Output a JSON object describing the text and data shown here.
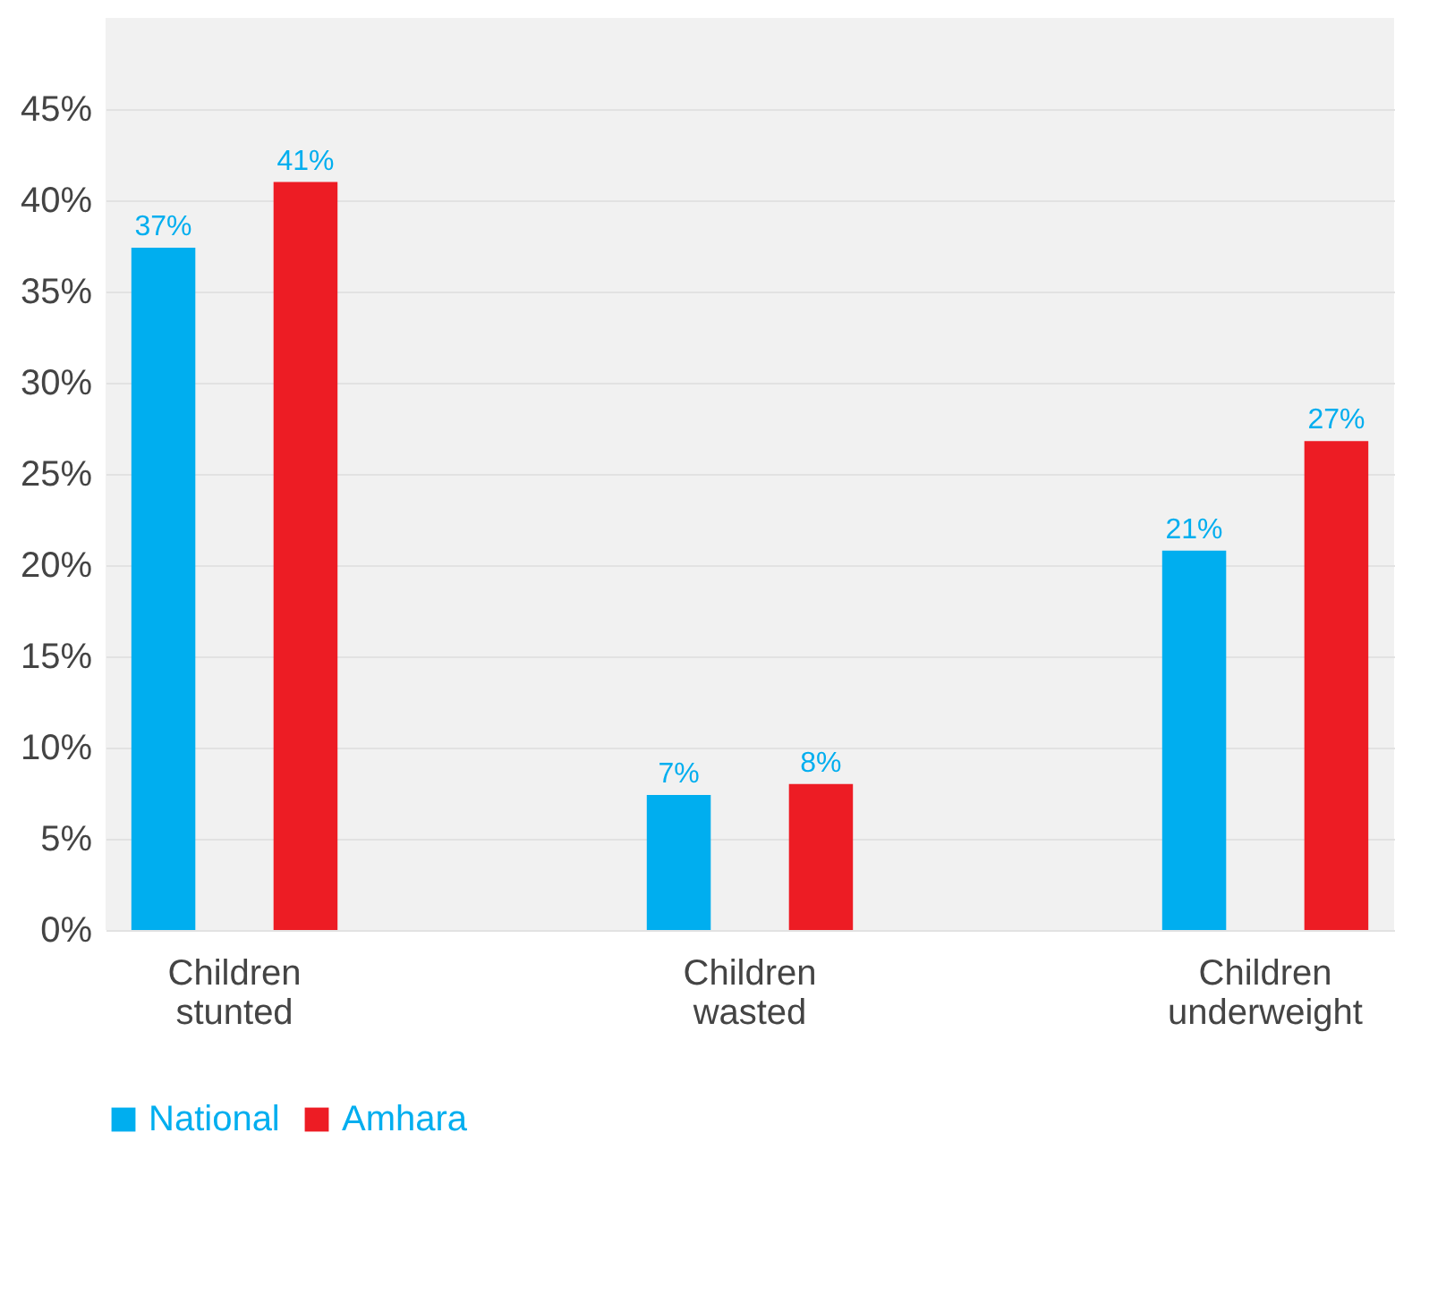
{
  "chart_data": {
    "type": "bar",
    "categories": [
      "Children stunted",
      "Children wasted",
      "Children underweight"
    ],
    "series": [
      {
        "name": "National",
        "color": "#00aeef",
        "values": [
          37.4,
          7.4,
          20.8
        ],
        "value_labels": [
          "37%",
          "7%",
          "21%"
        ]
      },
      {
        "name": "Amhara",
        "color": "#ed1c24",
        "values": [
          41,
          8,
          26.8
        ],
        "value_labels": [
          "41%",
          "8%",
          "27%"
        ]
      }
    ],
    "ylim": [
      0,
      50
    ],
    "yticks": [
      {
        "value": 0,
        "label": "0%"
      },
      {
        "value": 5,
        "label": "5%"
      },
      {
        "value": 10,
        "label": "10%"
      },
      {
        "value": 15,
        "label": "15%"
      },
      {
        "value": 20,
        "label": "20%"
      },
      {
        "value": 25,
        "label": "25%"
      },
      {
        "value": 30,
        "label": "30%"
      },
      {
        "value": 35,
        "label": "35%"
      },
      {
        "value": 40,
        "label": "40%"
      },
      {
        "value": 45,
        "label": "45%"
      }
    ],
    "grid": "y",
    "legend": "bottom"
  }
}
